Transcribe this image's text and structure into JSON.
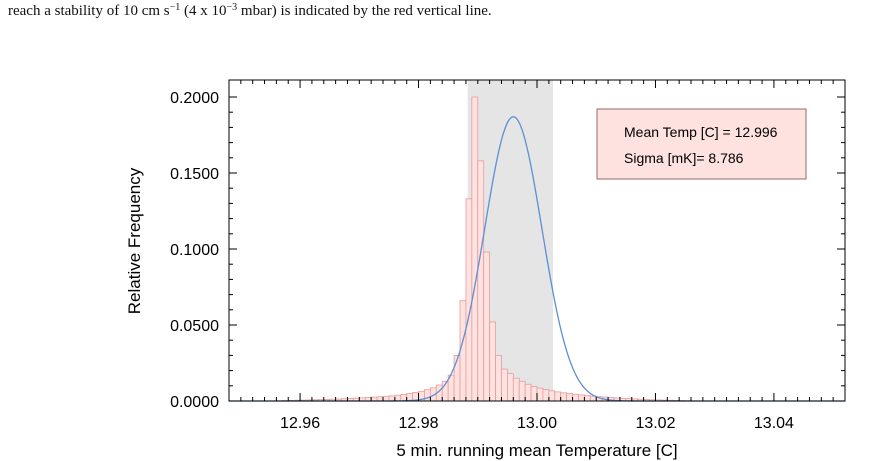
{
  "caption": {
    "prefix": "reach a stability of 10 cm s",
    "exp1": "−1",
    "middle": " (4 x 10",
    "exp2": "−3",
    "suffix": " mbar) is indicated by the red vertical line."
  },
  "chart_data": {
    "type": "bar",
    "xlabel": "5 min. running mean Temperature [C]",
    "ylabel": "Relative Frequency",
    "xlim": [
      12.948,
      13.052
    ],
    "ylim": [
      0.0,
      0.2
    ],
    "xticks": [
      12.96,
      12.98,
      13.0,
      13.02,
      13.04
    ],
    "xtick_labels": [
      "12.96",
      "12.98",
      "13.00",
      "13.02",
      "13.04"
    ],
    "yticks": [
      0.0,
      0.05,
      0.1,
      0.15,
      0.2
    ],
    "ytick_labels": [
      "0.0000",
      "0.0500",
      "0.1000",
      "0.1500",
      "0.2000"
    ],
    "shaded_band": [
      12.9883,
      13.0027
    ],
    "bin_width": 0.001,
    "bin_start": 12.956,
    "values": [
      0.0001,
      0.0003,
      0.0004,
      0.0005,
      0.0006,
      0.0007,
      0.0008,
      0.0009,
      0.001,
      0.0012,
      0.0013,
      0.0015,
      0.0017,
      0.0019,
      0.0021,
      0.0023,
      0.0025,
      0.0028,
      0.0031,
      0.0034,
      0.0038,
      0.0043,
      0.0049,
      0.0056,
      0.0064,
      0.0074,
      0.0087,
      0.0105,
      0.013,
      0.017,
      0.03,
      0.066,
      0.133,
      0.2,
      0.158,
      0.098,
      0.052,
      0.03,
      0.021,
      0.018,
      0.015,
      0.013,
      0.011,
      0.0095,
      0.0085,
      0.0075,
      0.0067,
      0.006,
      0.0054,
      0.0049,
      0.0044,
      0.004,
      0.0036,
      0.0032,
      0.0029,
      0.0026,
      0.0023,
      0.002,
      0.0018,
      0.0016,
      0.0014,
      0.0012,
      0.001,
      0.0008,
      0.0007,
      0.0006,
      0.0005,
      0.0004,
      0.0003,
      0.0002
    ],
    "fit": {
      "type": "gaussian",
      "mean": 12.996,
      "sigma_mK": 8.786,
      "peak": 0.187,
      "color": "#5b8fd6"
    },
    "legend": {
      "line1": "Mean Temp [C] = 12.996",
      "line2": "Sigma [mK]= 8.786",
      "placement": "top-right"
    },
    "colors": {
      "bar_fill": "#fde2df",
      "bar_edge": "#e99c9c",
      "band": "#e5e5e5",
      "legend_fill": "#fde2df",
      "legend_edge": "#9a6a6a"
    }
  }
}
